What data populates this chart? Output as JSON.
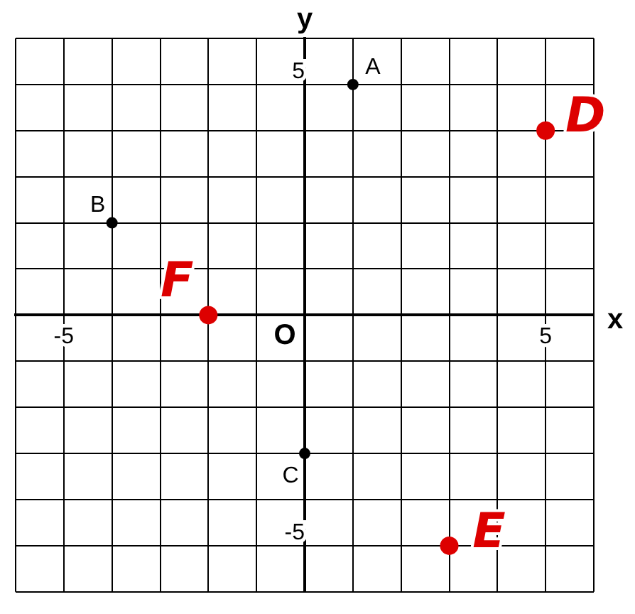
{
  "chart_data": {
    "type": "scatter",
    "xlabel": "x",
    "ylabel": "y",
    "xlim": [
      -6,
      6
    ],
    "ylim": [
      -6,
      6
    ],
    "xticks": [
      {
        "value": -6,
        "label": null
      },
      -5,
      {
        "value": -4,
        "label": null
      },
      {
        "value": -3,
        "label": null
      },
      {
        "value": -2,
        "label": null
      },
      {
        "value": -1,
        "label": null
      },
      {
        "value": 0,
        "label": null
      },
      {
        "value": 1,
        "label": null
      },
      {
        "value": 2,
        "label": null
      },
      {
        "value": 3,
        "label": null
      },
      {
        "value": 4,
        "label": null
      },
      5,
      {
        "value": 6,
        "label": null
      }
    ],
    "yticks": [
      {
        "value": -6,
        "label": null
      },
      -5,
      {
        "value": -4,
        "label": null
      },
      {
        "value": -3,
        "label": null
      },
      {
        "value": -2,
        "label": null
      },
      {
        "value": -1,
        "label": null
      },
      {
        "value": 0,
        "label": null
      },
      {
        "value": 1,
        "label": null
      },
      {
        "value": 2,
        "label": null
      },
      {
        "value": 3,
        "label": null
      },
      {
        "value": 4,
        "label": null
      },
      5,
      {
        "value": 6,
        "label": null
      }
    ],
    "grid": true,
    "marker": "circle",
    "legend": false,
    "annotations": [
      "O"
    ],
    "series": [
      {
        "name": "A",
        "color": "#000000",
        "x": [
          1
        ],
        "values": [
          5
        ]
      },
      {
        "name": "B",
        "color": "#000000",
        "x": [
          -4
        ],
        "values": [
          2
        ]
      },
      {
        "name": "C",
        "color": "#000000",
        "x": [
          0
        ],
        "values": [
          -3
        ]
      },
      {
        "name": "D",
        "color": "#dd0000",
        "x": [
          5
        ],
        "values": [
          4
        ]
      },
      {
        "name": "E",
        "color": "#dd0000",
        "x": [
          3
        ],
        "values": [
          -5
        ]
      },
      {
        "name": "F",
        "color": "#dd0000",
        "x": [
          -2
        ],
        "values": [
          0
        ]
      }
    ]
  }
}
